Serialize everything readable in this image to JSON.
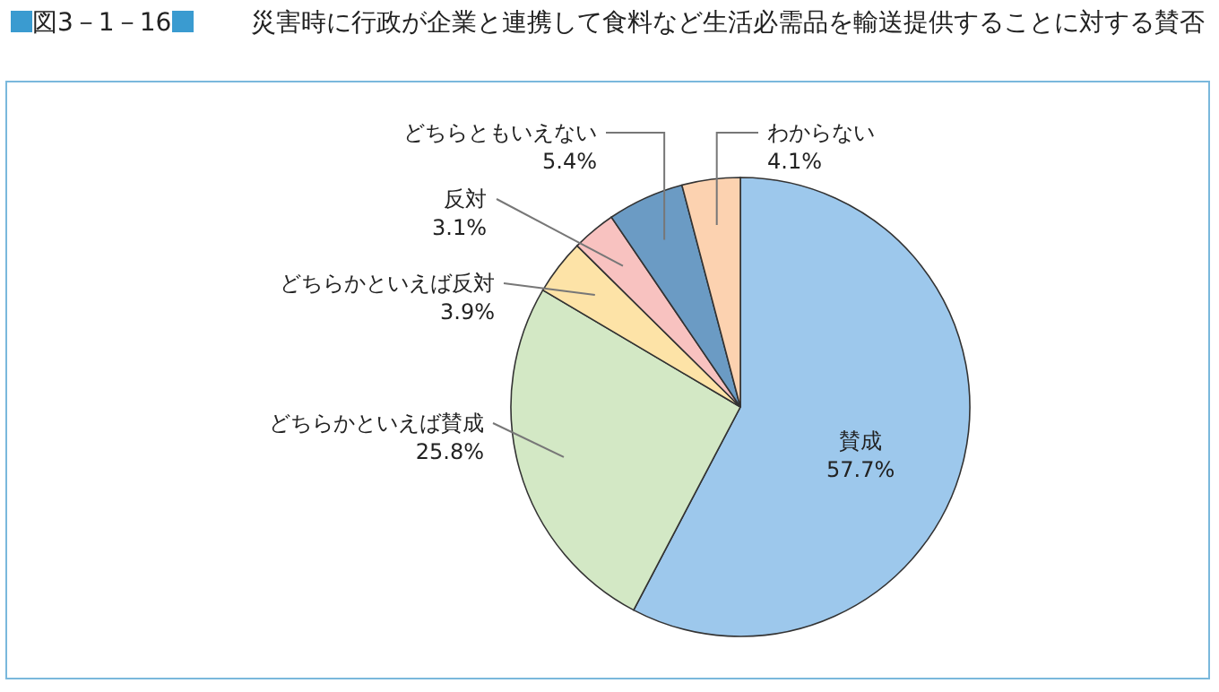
{
  "chart_data": {
    "type": "pie",
    "title": "図3－1－16",
    "subtitle": "災害時に行政が企業と連携して食料など生活必需品を輸送提供することに対する賛否",
    "categories": [
      "賛成",
      "どちらかといえば賛成",
      "どちらかといえば反対",
      "反対",
      "どちらともいえない",
      "わからない"
    ],
    "values": [
      57.7,
      25.8,
      3.9,
      3.1,
      5.4,
      4.1
    ],
    "value_labels": [
      "57.7%",
      "25.8%",
      "3.9%",
      "3.1%",
      "5.4%",
      "4.1%"
    ],
    "colors": [
      "#9dc8ec",
      "#d3e8c5",
      "#fde3a7",
      "#f8c2c0",
      "#6b9bc4",
      "#fcd2b0"
    ]
  }
}
